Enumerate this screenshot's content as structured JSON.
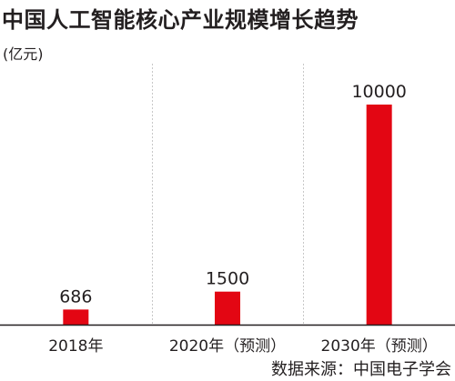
{
  "title": "中国人工智能核心产业规模增长趋势",
  "unit": "(亿元)",
  "source": "数据来源：中国电子学会",
  "colors": {
    "bar": "#e30613",
    "text": "#231f20",
    "axis": "#231f20",
    "divider": "#c8c8c8"
  },
  "chart_data": {
    "type": "bar",
    "categories": [
      "2018年",
      "2020年（预测）",
      "2030年（预测）"
    ],
    "values": [
      686,
      1500,
      10000
    ],
    "data_labels": [
      "686",
      "1500",
      "10000"
    ],
    "title": "中国人工智能核心产业规模增长趋势",
    "xlabel": "",
    "ylabel": "(亿元)",
    "ylim": [
      0,
      10500
    ],
    "grid": false,
    "legend": "none"
  }
}
